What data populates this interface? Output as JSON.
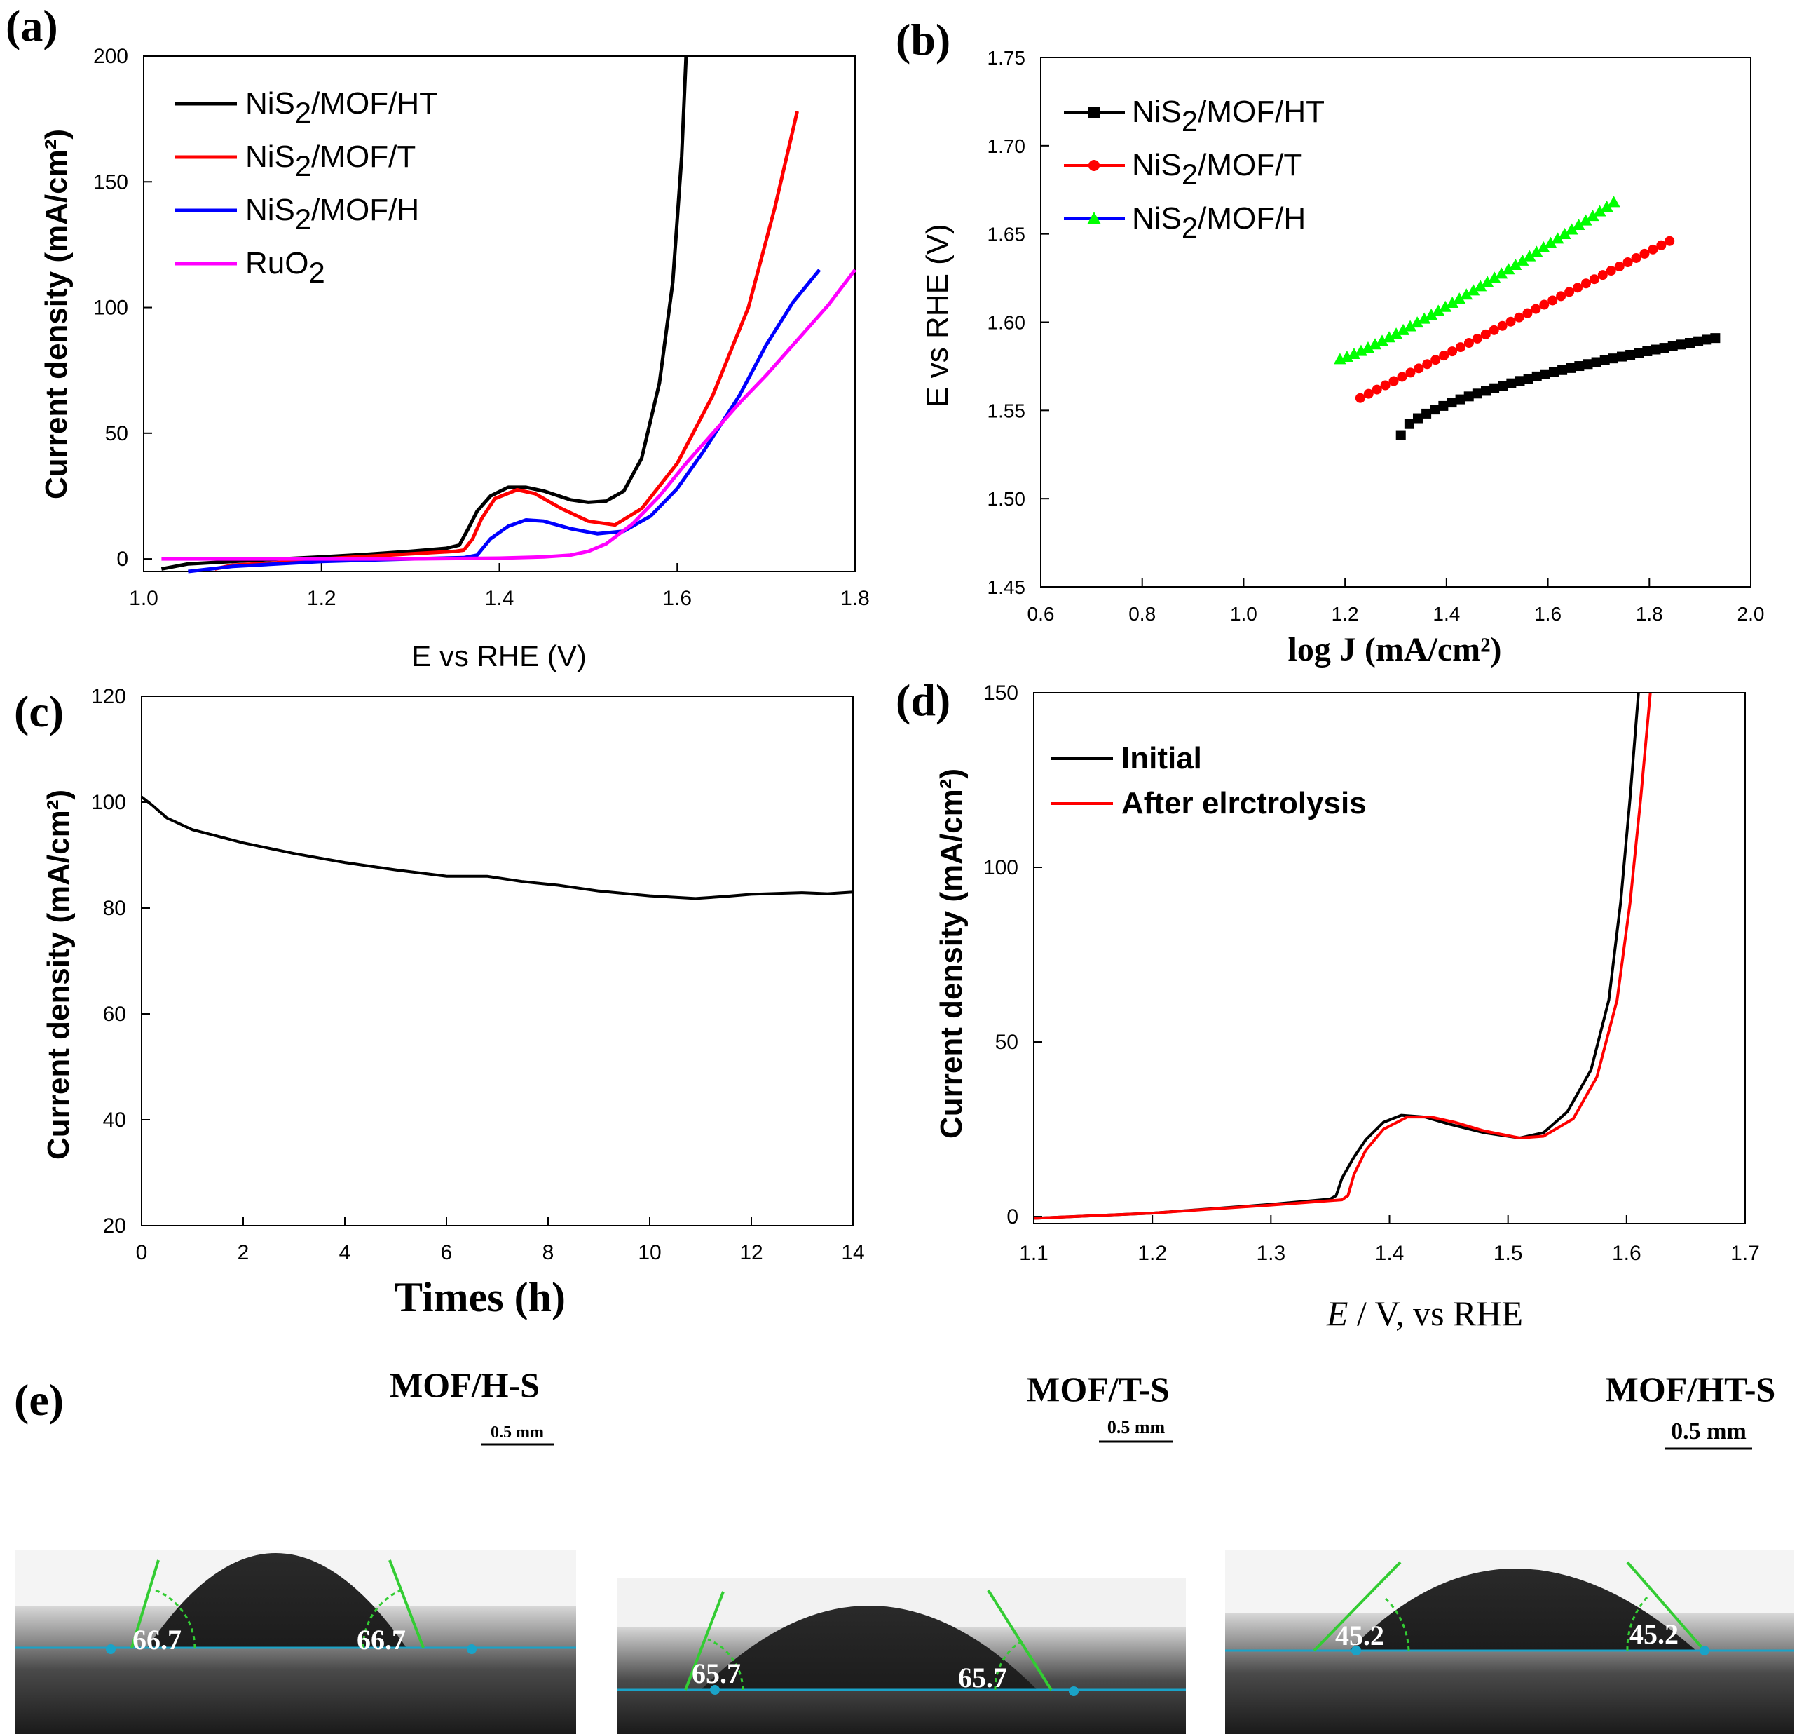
{
  "chart_data": [
    {
      "id": "a",
      "panel_label": "(a)",
      "type": "line",
      "xlabel": "E vs RHE (V)",
      "ylabel": "Current density (mA/cm²)",
      "xlim": [
        1.0,
        1.8
      ],
      "ylim": [
        -5,
        200
      ],
      "xticks": [
        "1.0",
        "1.2",
        "1.4",
        "1.6",
        "1.8"
      ],
      "yticks": [
        "0",
        "50",
        "100",
        "150",
        "200"
      ],
      "legend_position": "top-left",
      "series": [
        {
          "name": "NiS2/MOF/HT",
          "name_main": "NiS",
          "name_sub": "2",
          "name_tail": "/MOF/HT",
          "color": "#000000",
          "points": [
            [
              1.02,
              -4
            ],
            [
              1.05,
              -2
            ],
            [
              1.1,
              -1
            ],
            [
              1.2,
              0.8
            ],
            [
              1.25,
              1.8
            ],
            [
              1.3,
              3
            ],
            [
              1.34,
              4.2
            ],
            [
              1.355,
              5.5
            ],
            [
              1.365,
              12
            ],
            [
              1.375,
              19
            ],
            [
              1.39,
              25
            ],
            [
              1.41,
              28.5
            ],
            [
              1.43,
              28.5
            ],
            [
              1.45,
              27
            ],
            [
              1.48,
              23.5
            ],
            [
              1.5,
              22.5
            ],
            [
              1.52,
              23
            ],
            [
              1.54,
              27
            ],
            [
              1.56,
              40
            ],
            [
              1.58,
              70
            ],
            [
              1.595,
              110
            ],
            [
              1.605,
              160
            ],
            [
              1.61,
              200
            ]
          ]
        },
        {
          "name": "NiS2/MOF/T",
          "name_main": "NiS",
          "name_sub": "2",
          "name_tail": "/MOF/T",
          "color": "#ff0000",
          "points": [
            [
              1.08,
              -4
            ],
            [
              1.1,
              -2.5
            ],
            [
              1.15,
              -1.5
            ],
            [
              1.2,
              0
            ],
            [
              1.25,
              1
            ],
            [
              1.3,
              2
            ],
            [
              1.35,
              3
            ],
            [
              1.36,
              3.5
            ],
            [
              1.37,
              8
            ],
            [
              1.38,
              16
            ],
            [
              1.395,
              24
            ],
            [
              1.42,
              27.5
            ],
            [
              1.44,
              26
            ],
            [
              1.47,
              20
            ],
            [
              1.5,
              15
            ],
            [
              1.53,
              13.5
            ],
            [
              1.56,
              20
            ],
            [
              1.6,
              38
            ],
            [
              1.64,
              65
            ],
            [
              1.68,
              100
            ],
            [
              1.71,
              140
            ],
            [
              1.735,
              178
            ]
          ]
        },
        {
          "name": "NiS2/MOF/H",
          "name_main": "NiS",
          "name_sub": "2",
          "name_tail": "/MOF/H",
          "color": "#0000ff",
          "points": [
            [
              1.05,
              -5
            ],
            [
              1.1,
              -3
            ],
            [
              1.2,
              -1
            ],
            [
              1.3,
              0
            ],
            [
              1.36,
              0.5
            ],
            [
              1.375,
              1.5
            ],
            [
              1.39,
              8
            ],
            [
              1.41,
              13
            ],
            [
              1.43,
              15.5
            ],
            [
              1.45,
              15
            ],
            [
              1.48,
              12
            ],
            [
              1.51,
              10
            ],
            [
              1.54,
              11
            ],
            [
              1.57,
              17
            ],
            [
              1.6,
              28
            ],
            [
              1.63,
              43
            ],
            [
              1.67,
              65
            ],
            [
              1.7,
              85
            ],
            [
              1.73,
              102
            ],
            [
              1.76,
              115
            ]
          ]
        },
        {
          "name": "RuO2",
          "name_main": "RuO",
          "name_sub": "2",
          "name_tail": "",
          "color": "#ff00ff",
          "points": [
            [
              1.02,
              0
            ],
            [
              1.2,
              0
            ],
            [
              1.3,
              0
            ],
            [
              1.4,
              0.3
            ],
            [
              1.45,
              0.8
            ],
            [
              1.48,
              1.5
            ],
            [
              1.5,
              3
            ],
            [
              1.52,
              6
            ],
            [
              1.55,
              14
            ],
            [
              1.58,
              25
            ],
            [
              1.61,
              38
            ],
            [
              1.64,
              50
            ],
            [
              1.67,
              62
            ],
            [
              1.7,
              73
            ],
            [
              1.74,
              89
            ],
            [
              1.77,
              101
            ],
            [
              1.8,
              115
            ]
          ]
        }
      ]
    },
    {
      "id": "b",
      "panel_label": "(b)",
      "type": "line",
      "xlabel": "log J (mA/cm²)",
      "ylabel": "E vs RHE (V)",
      "xlim": [
        0.6,
        2.0
      ],
      "ylim": [
        1.45,
        1.75
      ],
      "xticks": [
        "0.6",
        "0.8",
        "1.0",
        "1.2",
        "1.4",
        "1.6",
        "1.8",
        "2.0"
      ],
      "yticks": [
        "1.45",
        "1.50",
        "1.55",
        "1.60",
        "1.65",
        "1.70",
        "1.75"
      ],
      "legend_position": "top-left",
      "series": [
        {
          "name": "NiS2/MOF/HT",
          "name_main": "NiS",
          "name_sub": "2",
          "name_tail": "/MOF/HT",
          "color": "#000000",
          "marker": "square",
          "line_color": "#000000",
          "x_start": 1.31,
          "x_end": 1.93,
          "y_start": 1.536,
          "y_end": 1.591,
          "curve": "concave",
          "count": 38
        },
        {
          "name": "NiS2/MOF/T",
          "name_main": "NiS",
          "name_sub": "2",
          "name_tail": "/MOF/T",
          "color": "#ff0000",
          "marker": "circle",
          "line_color": "#ff0000",
          "x_start": 1.23,
          "x_end": 1.84,
          "y_start": 1.557,
          "y_end": 1.646,
          "curve": "linear",
          "count": 38
        },
        {
          "name": "NiS2/MOF/H",
          "name_main": "NiS",
          "name_sub": "2",
          "name_tail": "/MOF/H",
          "color": "#00ff00",
          "marker": "triangle",
          "line_color": "#0000ff",
          "x_start": 1.19,
          "x_end": 1.73,
          "y_start": 1.579,
          "y_end": 1.668,
          "curve": "convex",
          "count": 40
        }
      ]
    },
    {
      "id": "c",
      "panel_label": "(c)",
      "type": "line",
      "xlabel": "Times (h)",
      "ylabel": "Current density (mA/cm²)",
      "xlim": [
        0,
        14
      ],
      "ylim": [
        20,
        120
      ],
      "xticks": [
        "0",
        "2",
        "4",
        "6",
        "8",
        "10",
        "12",
        "14"
      ],
      "yticks": [
        "20",
        "40",
        "60",
        "80",
        "100",
        "120"
      ],
      "series": [
        {
          "name": "stability",
          "color": "#000000",
          "points": [
            [
              0,
              101
            ],
            [
              0.2,
              99.5
            ],
            [
              0.5,
              97
            ],
            [
              1,
              94.8
            ],
            [
              2,
              92.3
            ],
            [
              3,
              90.3
            ],
            [
              4,
              88.6
            ],
            [
              5,
              87.2
            ],
            [
              6,
              86
            ],
            [
              6.8,
              86
            ],
            [
              7.5,
              85
            ],
            [
              8.2,
              84.3
            ],
            [
              9,
              83.2
            ],
            [
              10,
              82.3
            ],
            [
              10.9,
              81.8
            ],
            [
              11.5,
              82.2
            ],
            [
              12,
              82.6
            ],
            [
              13,
              82.9
            ],
            [
              13.5,
              82.7
            ],
            [
              14,
              83
            ]
          ]
        }
      ]
    },
    {
      "id": "d",
      "panel_label": "(d)",
      "type": "line",
      "xlabel": "E / V, vs RHE",
      "xlabel_italic": "E",
      "xlabel_rest": " / V, vs RHE",
      "ylabel": "Current density (mA/cm²)",
      "xlim": [
        1.1,
        1.7
      ],
      "ylim": [
        -2,
        150
      ],
      "xticks": [
        "1.1",
        "1.2",
        "1.3",
        "1.4",
        "1.5",
        "1.6",
        "1.7"
      ],
      "yticks": [
        "0",
        "50",
        "100",
        "150"
      ],
      "legend_position": "top-left",
      "series": [
        {
          "name": "Initial",
          "color": "#000000",
          "points": [
            [
              1.1,
              -0.5
            ],
            [
              1.2,
              1
            ],
            [
              1.3,
              3.5
            ],
            [
              1.35,
              5
            ],
            [
              1.355,
              6
            ],
            [
              1.36,
              11
            ],
            [
              1.37,
              17
            ],
            [
              1.38,
              22
            ],
            [
              1.395,
              27
            ],
            [
              1.41,
              29
            ],
            [
              1.43,
              28.5
            ],
            [
              1.45,
              26.5
            ],
            [
              1.48,
              24
            ],
            [
              1.51,
              22.5
            ],
            [
              1.53,
              24
            ],
            [
              1.55,
              30
            ],
            [
              1.57,
              42
            ],
            [
              1.585,
              62
            ],
            [
              1.595,
              90
            ],
            [
              1.603,
              120
            ],
            [
              1.61,
              150
            ]
          ]
        },
        {
          "name": "After elrctrolysis",
          "color": "#ff0000",
          "points": [
            [
              1.1,
              -0.5
            ],
            [
              1.2,
              1
            ],
            [
              1.3,
              3.3
            ],
            [
              1.36,
              4.8
            ],
            [
              1.365,
              6
            ],
            [
              1.37,
              12
            ],
            [
              1.38,
              19
            ],
            [
              1.395,
              25
            ],
            [
              1.415,
              28.5
            ],
            [
              1.435,
              28.5
            ],
            [
              1.455,
              27
            ],
            [
              1.48,
              24.5
            ],
            [
              1.51,
              22.5
            ],
            [
              1.53,
              23
            ],
            [
              1.555,
              28
            ],
            [
              1.575,
              40
            ],
            [
              1.592,
              62
            ],
            [
              1.603,
              90
            ],
            [
              1.612,
              120
            ],
            [
              1.62,
              150
            ]
          ]
        }
      ]
    }
  ],
  "panel_e": {
    "panel_label": "(e)",
    "scale_label": "0.5 mm",
    "samples": [
      {
        "title": "MOF/H-S",
        "angle_left": "66.7",
        "angle_right": "66.7"
      },
      {
        "title": "MOF/T-S",
        "angle_left": "65.7",
        "angle_right": "65.7"
      },
      {
        "title": "MOF/HT-S",
        "angle_left": "45.2",
        "angle_right": "45.2"
      }
    ]
  }
}
